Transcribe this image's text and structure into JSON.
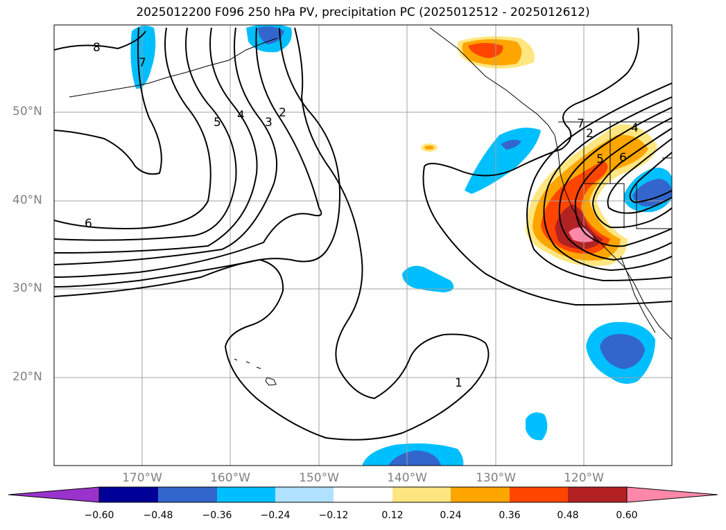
{
  "title": "2025012200 F096 250 hPa PV, precipitation PC (2025012512 - 2025012612)",
  "map": {
    "lat_labels": [
      "50°N",
      "40°N",
      "30°N",
      "20°N"
    ],
    "lon_labels": [
      "170°W",
      "160°W",
      "150°W",
      "140°W",
      "130°W",
      "120°W"
    ],
    "contour_labels": [
      "8",
      "7",
      "6",
      "5",
      "4",
      "3",
      "2",
      "1",
      "2",
      "5",
      "6",
      "7",
      "4"
    ]
  },
  "colorbar": {
    "tick_labels": [
      "−0.60",
      "−0.48",
      "−0.36",
      "−0.24",
      "−0.12",
      "0.12",
      "0.24",
      "0.36",
      "0.48",
      "0.60"
    ],
    "colors": [
      "#9933cc",
      "#000099",
      "#3366cc",
      "#00bfff",
      "#b0e2ff",
      "#ffffff",
      "#ffe680",
      "#ffa500",
      "#ff4500",
      "#b22222",
      "#ff88aa",
      "#ff88aa"
    ]
  }
}
